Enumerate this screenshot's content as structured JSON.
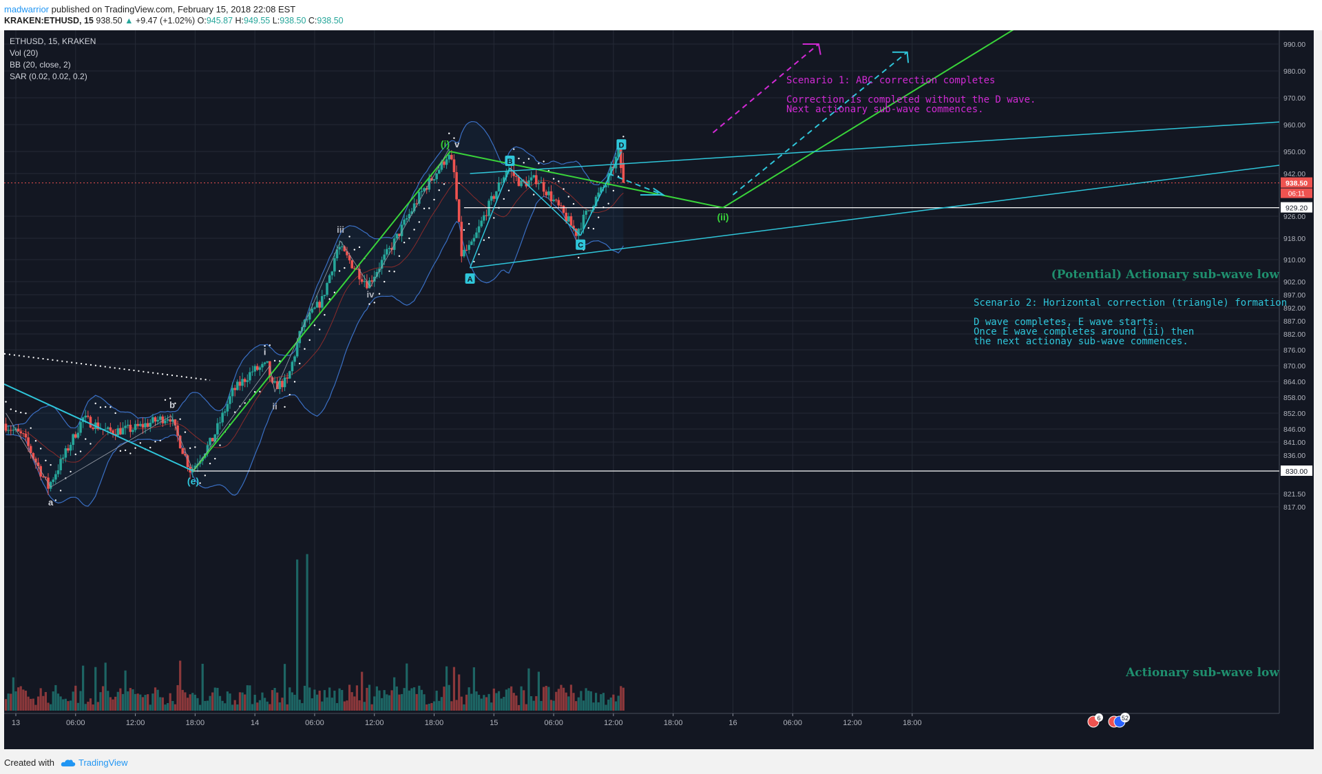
{
  "header": {
    "author": "madwarrior",
    "published": " published on TradingView.com, February 15, 2018 22:08 EST",
    "symbol": "KRAKEN:ETHUSD, 15",
    "last": "938.50",
    "change": "+9.47 (+1.02%)",
    "open_label": "O:",
    "open": "945.87",
    "high_label": "H:",
    "high": "949.55",
    "low_label": "L:",
    "low": "938.50",
    "close_label": "C:",
    "close": "938.50"
  },
  "legend": {
    "symbol": "ETHUSD, 15, KRAKEN",
    "vol": "Vol (20)",
    "bb": "BB (20, close, 2)",
    "sar": "SAR (0.02, 0.02, 0.2)"
  },
  "annotations": {
    "scenario1_title": "Scenario 1: ABC correction completes",
    "scenario1_line1": "Correction is completed without the D wave.",
    "scenario1_line2": "Next actionary sub-wave commences.",
    "scenario2_title": "Scenario 2: Horizontal correction (triangle) formation",
    "scenario2_line1": "D wave completes, E wave starts.",
    "scenario2_line2": "Once E wave completes around (ii) then",
    "scenario2_line3": "the next actionay sub-wave commences.",
    "potential_low": "(Potential) Actionary sub-wave low",
    "actionary_low": "Actionary sub-wave low"
  },
  "price_tags": {
    "current": "938.50",
    "countdown": "06:11",
    "level_929": "929.20",
    "level_830": "830.00"
  },
  "wave_labels": {
    "a": "a",
    "b": "b",
    "e": "(e)",
    "i": "i",
    "ii": "ii",
    "iii": "iii",
    "iv": "iv",
    "v": "v",
    "wave_i": "(i)",
    "wave_ii": "(ii)",
    "A": "A",
    "B": "B",
    "C": "C",
    "D": "D"
  },
  "badges": {
    "badge1": "6",
    "badge2": "52"
  },
  "footer": {
    "created_with": "Created with",
    "brand": "TradingView"
  },
  "colors": {
    "background": "#131722",
    "up_candle": "#26a69a",
    "down_candle": "#ef5350",
    "elliott_green": "#39d43a",
    "triangle_cyan": "#2fc6da",
    "scenario1_magenta": "#d12ad4"
  },
  "chart_data": {
    "type": "candlestick",
    "title": "ETHUSD, 15, KRAKEN",
    "xlabel": "",
    "ylabel": "",
    "ylim": [
      812,
      994
    ],
    "y_ticks": [
      990,
      980,
      970,
      960,
      950,
      942,
      926,
      918,
      910,
      902,
      897,
      892,
      887,
      882,
      876,
      870,
      864,
      858,
      852,
      846,
      841,
      836,
      821.5,
      817
    ],
    "x_ticks": [
      "13",
      "06:00",
      "12:00",
      "18:00",
      "14",
      "06:00",
      "12:00",
      "18:00",
      "15",
      "06:00",
      "12:00",
      "18:00",
      "16",
      "06:00",
      "12:00",
      "18:00"
    ],
    "x_range_hours": [
      -1.18,
      66.7
    ],
    "anchors": [
      {
        "t": -1.0,
        "p": 848
      },
      {
        "t": 1.0,
        "p": 843
      },
      {
        "t": 3.5,
        "p": 824
      },
      {
        "t": 5.0,
        "p": 835
      },
      {
        "t": 7.0,
        "p": 850
      },
      {
        "t": 9.5,
        "p": 845
      },
      {
        "t": 12.0,
        "p": 846
      },
      {
        "t": 15.7,
        "p": 851
      },
      {
        "t": 17.0,
        "p": 838
      },
      {
        "t": 17.8,
        "p": 830
      },
      {
        "t": 20.0,
        "p": 842
      },
      {
        "t": 22.0,
        "p": 860
      },
      {
        "t": 24.0,
        "p": 868
      },
      {
        "t": 25.5,
        "p": 870
      },
      {
        "t": 26.0,
        "p": 862
      },
      {
        "t": 27.5,
        "p": 864
      },
      {
        "t": 29.0,
        "p": 885
      },
      {
        "t": 31.0,
        "p": 895
      },
      {
        "t": 32.6,
        "p": 915
      },
      {
        "t": 34.5,
        "p": 906
      },
      {
        "t": 35.6,
        "p": 901
      },
      {
        "t": 38.0,
        "p": 915
      },
      {
        "t": 41.0,
        "p": 935
      },
      {
        "t": 43.0,
        "p": 945
      },
      {
        "t": 43.6,
        "p": 949
      },
      {
        "t": 44.2,
        "p": 944
      },
      {
        "t": 45.0,
        "p": 912
      },
      {
        "t": 46.0,
        "p": 915
      },
      {
        "t": 47.5,
        "p": 928
      },
      {
        "t": 49.6,
        "p": 944
      },
      {
        "t": 51.0,
        "p": 938
      },
      {
        "t": 52.6,
        "p": 940
      },
      {
        "t": 55.0,
        "p": 928
      },
      {
        "t": 56.5,
        "p": 920
      },
      {
        "t": 58.0,
        "p": 930
      },
      {
        "t": 59.5,
        "p": 938
      },
      {
        "t": 60.8,
        "p": 950
      },
      {
        "t": 61.2,
        "p": 938.5
      }
    ],
    "volume_spike_hours": [
      28.2,
      29.3
    ],
    "elliott_points": [
      {
        "label": "(e)",
        "t": 17.8,
        "p": 830
      },
      {
        "label": "(i)",
        "t": 43.6,
        "p": 950
      },
      {
        "label": "(ii)",
        "t": 71.0,
        "p": 929.2
      }
    ],
    "triangle_points": [
      {
        "label": "A",
        "t": 45.6,
        "p": 907
      },
      {
        "label": "B",
        "t": 49.6,
        "p": 944
      },
      {
        "label": "C",
        "t": 56.7,
        "p": 919
      },
      {
        "label": "D",
        "t": 60.8,
        "p": 950
      }
    ],
    "horizontal_levels": [
      929.2,
      830.0
    ],
    "current_price": 938.5
  }
}
